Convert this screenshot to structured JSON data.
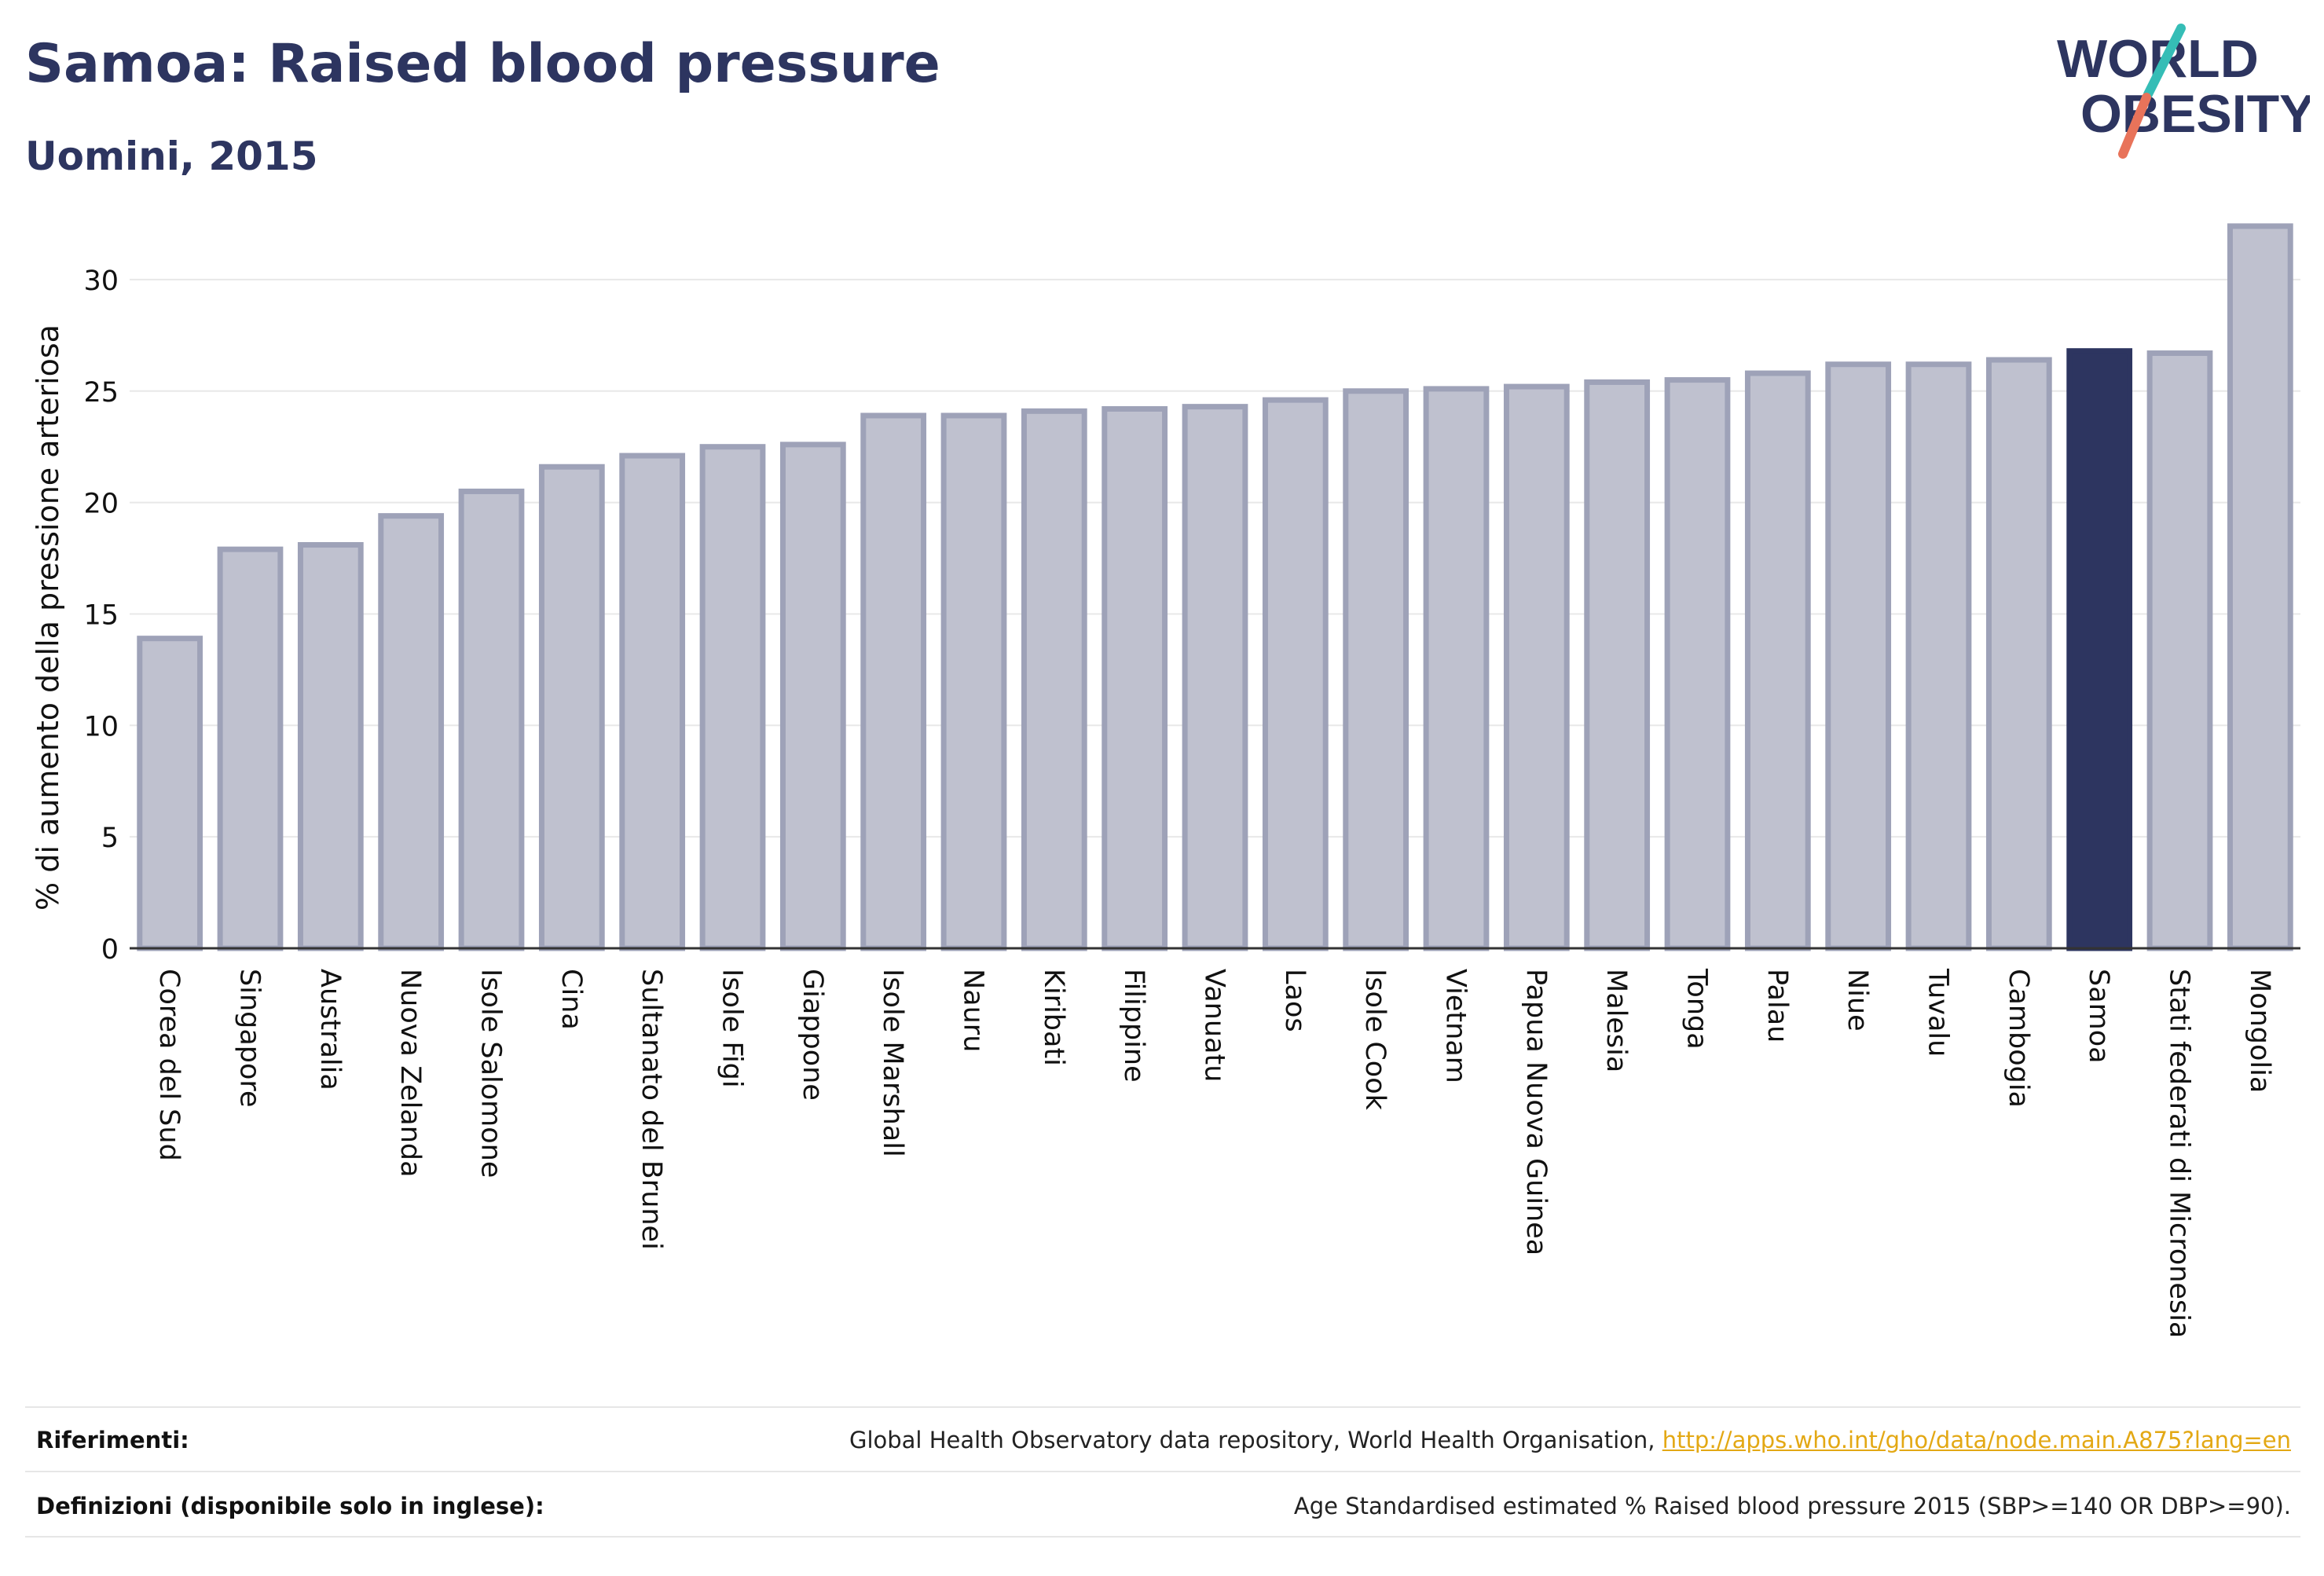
{
  "title": "Samoa: Raised blood pressure",
  "subtitle": "Uomini, 2015",
  "logo": {
    "line1": "WORLD",
    "line2": "OBESITY"
  },
  "footer": {
    "references_label": "Riferimenti:",
    "references_text": "Global Health Observatory data repository, World Health Organisation, ",
    "references_link": "http://apps.who.int/gho/data/node.main.A875?lang=en",
    "definitions_label": "Definizioni (disponibile solo in inglese):",
    "definitions_text": "Age Standardised estimated % Raised blood pressure 2015 (SBP>=140 OR DBP>=90)."
  },
  "colors": {
    "bar": "#bfc1cf",
    "bar_edge": "#9ea2b8",
    "highlight": "#2d3560",
    "title": "#2d3560",
    "logo_teal": "#35bdb6",
    "logo_coral": "#e8735a"
  },
  "chart_data": {
    "type": "bar",
    "ylabel": "% di aumento della pressione arteriosa",
    "ylim": [
      0,
      32.5
    ],
    "yticks": [
      0,
      5,
      10,
      15,
      20,
      25,
      30
    ],
    "highlight": "Samoa",
    "categories": [
      "Corea del Sud",
      "Singapore",
      "Australia",
      "Nuova Zelanda",
      "Isole Salomone",
      "Cina",
      "Sultanato del Brunei",
      "Isole Figi",
      "Giappone",
      "Isole Marshall",
      "Nauru",
      "Kiribati",
      "Filippine",
      "Vanuatu",
      "Laos",
      "Isole Cook",
      "Vietnam",
      "Papua Nuova Guinea",
      "Malesia",
      "Tonga",
      "Palau",
      "Niue",
      "Tuvalu",
      "Cambogia",
      "Samoa",
      "Stati federati di Micronesia",
      "Mongolia"
    ],
    "values": [
      13.9,
      17.9,
      18.1,
      19.4,
      20.5,
      21.6,
      22.1,
      22.5,
      22.6,
      23.9,
      23.9,
      24.1,
      24.2,
      24.3,
      24.6,
      25.0,
      25.1,
      25.2,
      25.4,
      25.5,
      25.8,
      26.2,
      26.2,
      26.4,
      26.8,
      26.7,
      32.4
    ]
  }
}
